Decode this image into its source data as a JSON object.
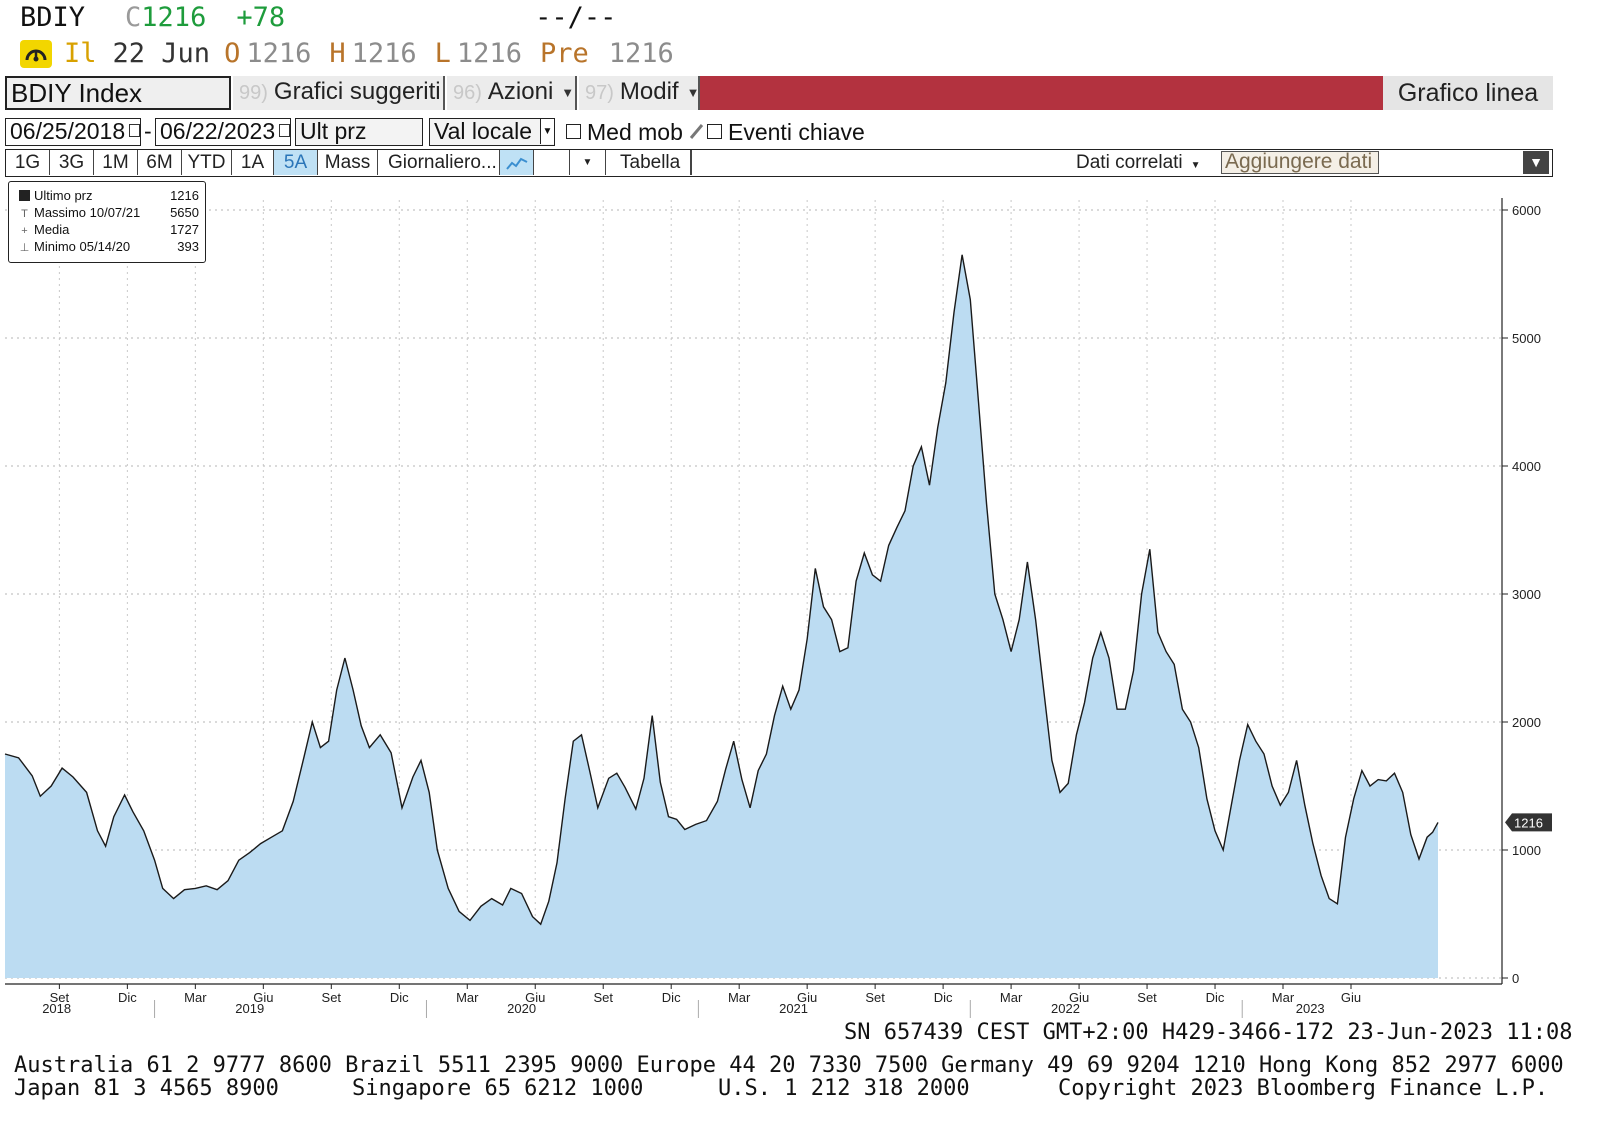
{
  "quote": {
    "ticker": "BDIY",
    "flag": "C",
    "last": "1216",
    "change": "+78",
    "bid_ask": "--/--"
  },
  "detail": {
    "indicator": "Il",
    "date": "22 Jun",
    "open_label": "O",
    "open": "1216",
    "high_label": "H",
    "high": "1216",
    "low_label": "L",
    "low": "1216",
    "prev_label": "Pre",
    "prev": "1216"
  },
  "toolbar1": {
    "security": "BDIY Index",
    "suggested_num": "99)",
    "suggested_label": "Grafici suggeriti",
    "actions_num": "96)",
    "actions_label": "Azioni",
    "edit_num": "97)",
    "edit_label": "Modif",
    "chart_type": "Grafico linea",
    "accent_color": "#b3323f"
  },
  "toolbar2": {
    "start_date": "06/25/2018",
    "date_sep": "-",
    "end_date": "06/22/2023",
    "field": "Ult prz",
    "currency": "Val locale",
    "moving_avg_label": "Med mob",
    "key_events_label": "Eventi chiave"
  },
  "toolbar3": {
    "ranges": [
      "1G",
      "3G",
      "1M",
      "6M",
      "YTD",
      "1A",
      "5A",
      "Mass"
    ],
    "active_range": "5A",
    "frequency": "Giornaliero...",
    "table_label": "Tabella",
    "related_label": "Dati correlati",
    "add_data_label": "Aggiungere dati"
  },
  "legend": {
    "rows": [
      {
        "label": "Ultimo prz",
        "value": "1216"
      },
      {
        "label": "Massimo 10/07/21",
        "value": "5650"
      },
      {
        "label": "Media",
        "value": "1727"
      },
      {
        "label": "Minimo 05/14/20",
        "value": "393"
      }
    ]
  },
  "chart_data": {
    "type": "area",
    "title": "",
    "fill_color": "#bcdcf2",
    "line_color": "#1a1a1a",
    "ylim": [
      0,
      6000
    ],
    "yticks": [
      0,
      1000,
      2000,
      3000,
      4000,
      5000,
      6000
    ],
    "last_value_label": "1216",
    "grid": true,
    "x_month_ticks": [
      {
        "label": "Set",
        "t": 0.2
      },
      {
        "label": "Dic",
        "t": 0.45
      },
      {
        "label": "Mar",
        "t": 0.7
      },
      {
        "label": "Giu",
        "t": 0.95
      },
      {
        "label": "Set",
        "t": 1.2
      },
      {
        "label": "Dic",
        "t": 1.45
      },
      {
        "label": "Mar",
        "t": 1.7
      },
      {
        "label": "Giu",
        "t": 1.95
      },
      {
        "label": "Set",
        "t": 2.2
      },
      {
        "label": "Dic",
        "t": 2.45
      },
      {
        "label": "Mar",
        "t": 2.7
      },
      {
        "label": "Giu",
        "t": 2.95
      },
      {
        "label": "Set",
        "t": 3.2
      },
      {
        "label": "Dic",
        "t": 3.45
      },
      {
        "label": "Mar",
        "t": 3.7
      },
      {
        "label": "Giu",
        "t": 3.95
      },
      {
        "label": "Set",
        "t": 4.2
      },
      {
        "label": "Dic",
        "t": 4.45
      },
      {
        "label": "Mar",
        "t": 4.7
      },
      {
        "label": "Giu",
        "t": 4.95
      }
    ],
    "x_year_labels": [
      {
        "label": "2018",
        "t": 0.19
      },
      {
        "label": "2019",
        "t": 0.9
      },
      {
        "label": "2020",
        "t": 1.9
      },
      {
        "label": "2021",
        "t": 2.9
      },
      {
        "label": "2022",
        "t": 3.9
      },
      {
        "label": "2023",
        "t": 4.8
      }
    ],
    "x_unit": "years since 06/25/2018",
    "points": [
      [
        0.0,
        1750
      ],
      [
        0.05,
        1720
      ],
      [
        0.1,
        1580
      ],
      [
        0.13,
        1420
      ],
      [
        0.17,
        1500
      ],
      [
        0.21,
        1640
      ],
      [
        0.25,
        1570
      ],
      [
        0.3,
        1450
      ],
      [
        0.34,
        1150
      ],
      [
        0.37,
        1030
      ],
      [
        0.4,
        1260
      ],
      [
        0.44,
        1430
      ],
      [
        0.47,
        1300
      ],
      [
        0.51,
        1150
      ],
      [
        0.55,
        920
      ],
      [
        0.58,
        700
      ],
      [
        0.62,
        620
      ],
      [
        0.66,
        690
      ],
      [
        0.7,
        700
      ],
      [
        0.74,
        720
      ],
      [
        0.78,
        690
      ],
      [
        0.82,
        760
      ],
      [
        0.86,
        920
      ],
      [
        0.9,
        980
      ],
      [
        0.94,
        1050
      ],
      [
        0.98,
        1100
      ],
      [
        1.02,
        1150
      ],
      [
        1.06,
        1380
      ],
      [
        1.1,
        1730
      ],
      [
        1.13,
        2000
      ],
      [
        1.16,
        1800
      ],
      [
        1.19,
        1850
      ],
      [
        1.22,
        2250
      ],
      [
        1.25,
        2500
      ],
      [
        1.28,
        2250
      ],
      [
        1.31,
        1970
      ],
      [
        1.34,
        1800
      ],
      [
        1.38,
        1900
      ],
      [
        1.42,
        1760
      ],
      [
        1.46,
        1330
      ],
      [
        1.5,
        1570
      ],
      [
        1.53,
        1700
      ],
      [
        1.56,
        1450
      ],
      [
        1.59,
        1000
      ],
      [
        1.63,
        700
      ],
      [
        1.67,
        520
      ],
      [
        1.71,
        450
      ],
      [
        1.75,
        560
      ],
      [
        1.79,
        620
      ],
      [
        1.83,
        570
      ],
      [
        1.86,
        700
      ],
      [
        1.9,
        660
      ],
      [
        1.94,
        480
      ],
      [
        1.97,
        420
      ],
      [
        2.0,
        600
      ],
      [
        2.03,
        900
      ],
      [
        2.06,
        1400
      ],
      [
        2.09,
        1850
      ],
      [
        2.12,
        1900
      ],
      [
        2.15,
        1620
      ],
      [
        2.18,
        1330
      ],
      [
        2.22,
        1560
      ],
      [
        2.25,
        1600
      ],
      [
        2.28,
        1490
      ],
      [
        2.32,
        1320
      ],
      [
        2.35,
        1560
      ],
      [
        2.38,
        2050
      ],
      [
        2.41,
        1530
      ],
      [
        2.44,
        1260
      ],
      [
        2.47,
        1240
      ],
      [
        2.5,
        1160
      ],
      [
        2.54,
        1200
      ],
      [
        2.58,
        1230
      ],
      [
        2.62,
        1380
      ],
      [
        2.65,
        1630
      ],
      [
        2.68,
        1850
      ],
      [
        2.71,
        1550
      ],
      [
        2.74,
        1330
      ],
      [
        2.77,
        1620
      ],
      [
        2.8,
        1750
      ],
      [
        2.83,
        2050
      ],
      [
        2.86,
        2280
      ],
      [
        2.89,
        2100
      ],
      [
        2.92,
        2250
      ],
      [
        2.95,
        2650
      ],
      [
        2.98,
        3200
      ],
      [
        3.01,
        2900
      ],
      [
        3.04,
        2800
      ],
      [
        3.07,
        2550
      ],
      [
        3.1,
        2580
      ],
      [
        3.13,
        3100
      ],
      [
        3.16,
        3320
      ],
      [
        3.19,
        3150
      ],
      [
        3.22,
        3100
      ],
      [
        3.25,
        3380
      ],
      [
        3.28,
        3520
      ],
      [
        3.31,
        3650
      ],
      [
        3.34,
        4000
      ],
      [
        3.37,
        4150
      ],
      [
        3.4,
        3850
      ],
      [
        3.43,
        4300
      ],
      [
        3.46,
        4650
      ],
      [
        3.49,
        5200
      ],
      [
        3.52,
        5650
      ],
      [
        3.55,
        5300
      ],
      [
        3.58,
        4500
      ],
      [
        3.61,
        3700
      ],
      [
        3.64,
        3000
      ],
      [
        3.67,
        2800
      ],
      [
        3.7,
        2550
      ],
      [
        3.73,
        2800
      ],
      [
        3.76,
        3250
      ],
      [
        3.79,
        2800
      ],
      [
        3.82,
        2250
      ],
      [
        3.85,
        1700
      ],
      [
        3.88,
        1450
      ],
      [
        3.91,
        1520
      ],
      [
        3.94,
        1900
      ],
      [
        3.97,
        2150
      ],
      [
        4.0,
        2500
      ],
      [
        4.03,
        2700
      ],
      [
        4.06,
        2500
      ],
      [
        4.09,
        2100
      ],
      [
        4.12,
        2100
      ],
      [
        4.15,
        2400
      ],
      [
        4.18,
        3000
      ],
      [
        4.21,
        3350
      ],
      [
        4.24,
        2700
      ],
      [
        4.27,
        2550
      ],
      [
        4.3,
        2450
      ],
      [
        4.33,
        2100
      ],
      [
        4.36,
        2000
      ],
      [
        4.39,
        1800
      ],
      [
        4.42,
        1400
      ],
      [
        4.45,
        1150
      ],
      [
        4.48,
        1000
      ],
      [
        4.51,
        1350
      ],
      [
        4.54,
        1700
      ],
      [
        4.57,
        1980
      ],
      [
        4.6,
        1850
      ],
      [
        4.63,
        1750
      ],
      [
        4.66,
        1500
      ],
      [
        4.69,
        1350
      ],
      [
        4.72,
        1450
      ],
      [
        4.75,
        1700
      ],
      [
        4.78,
        1350
      ],
      [
        4.81,
        1050
      ],
      [
        4.84,
        800
      ],
      [
        4.87,
        620
      ],
      [
        4.9,
        580
      ],
      [
        4.93,
        1100
      ],
      [
        4.96,
        1400
      ],
      [
        4.99,
        1620
      ],
      [
        5.02,
        1500
      ],
      [
        5.05,
        1550
      ],
      [
        5.08,
        1540
      ],
      [
        5.11,
        1600
      ],
      [
        5.14,
        1450
      ],
      [
        5.17,
        1120
      ],
      [
        5.2,
        930
      ],
      [
        5.23,
        1100
      ],
      [
        5.25,
        1138
      ],
      [
        5.27,
        1216
      ]
    ]
  },
  "footer": {
    "session": "SN 657439 CEST GMT+2:00 H429-3466-172 23-Jun-2023 11:08",
    "contacts_line1": "Australia 61 2 9777 8600 Brazil 5511 2395 9000 Europe 44 20 7330 7500 Germany 49 69 9204 1210 Hong Kong 852 2977 6000",
    "contacts_japan": "Japan 81 3 4565 8900",
    "contacts_singapore": "Singapore 65 6212 1000",
    "contacts_us": "U.S. 1 212 318 2000",
    "copyright": "Copyright 2023 Bloomberg Finance L.P."
  }
}
